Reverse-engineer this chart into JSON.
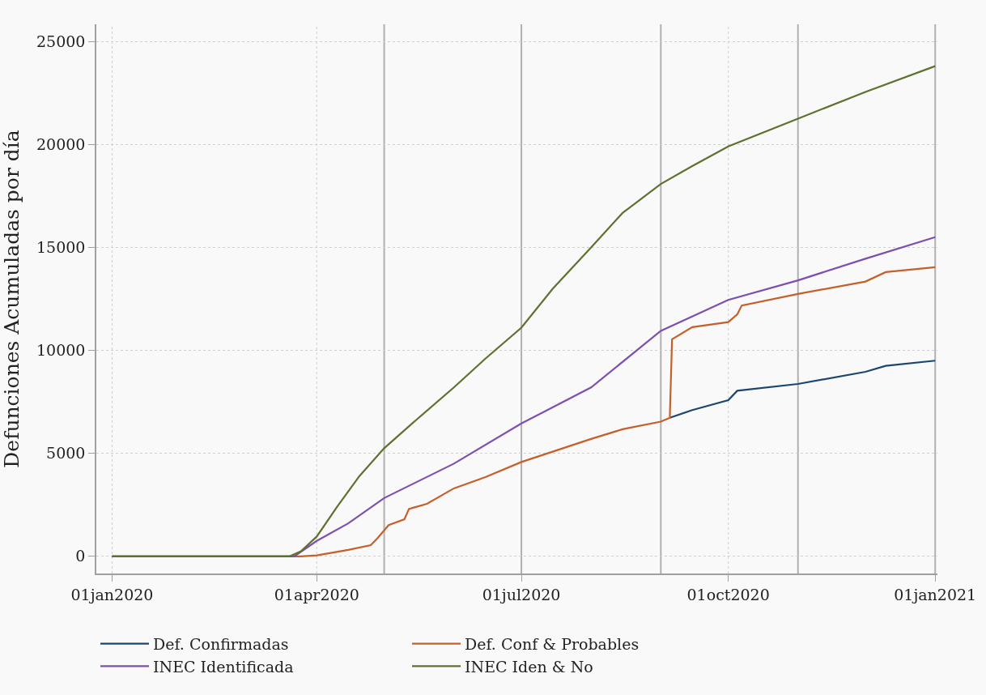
{
  "chart_data": {
    "type": "line",
    "ylabel": "Defunciones Acumuladas por día",
    "xlim": [
      "2019-12-25",
      "2021-01-02"
    ],
    "xticks": [
      {
        "value": "2020-01-01",
        "label": "01jan2020"
      },
      {
        "value": "2020-04-01",
        "label": "01apr2020"
      },
      {
        "value": "2020-07-01",
        "label": "01jul2020"
      },
      {
        "value": "2020-10-01",
        "label": "01oct2020"
      },
      {
        "value": "2021-01-01",
        "label": "01jan2021"
      }
    ],
    "ylim": [
      -833,
      25830
    ],
    "yticks": [
      0,
      5000,
      10000,
      15000,
      20000,
      25000
    ],
    "grid": true,
    "legend": "bottom",
    "marker": "none",
    "line_style": "solid",
    "ref_lines": [
      {
        "axis": "x",
        "value": "2020-05-01",
        "color": "#b0b0b0"
      },
      {
        "axis": "x",
        "value": "2020-07-01",
        "color": "#b0b0b0"
      },
      {
        "axis": "x",
        "value": "2020-09-01",
        "color": "#b0b0b0"
      },
      {
        "axis": "x",
        "value": "2020-11-01",
        "color": "#b0b0b0"
      },
      {
        "axis": "x",
        "value": "2021-01-01",
        "color": "#b0b0b0"
      }
    ],
    "series": [
      {
        "name": "Def. Confirmadas",
        "color": "#1a476f",
        "x": [
          "2020-09-05",
          "2020-09-15",
          "2020-10-01",
          "2020-10-05",
          "2020-11-01",
          "2020-12-01",
          "2020-12-10",
          "2021-01-01"
        ],
        "values": [
          6730,
          7100,
          7580,
          8040,
          8370,
          8960,
          9250,
          9500
        ]
      },
      {
        "name": "Def. Conf & Probables",
        "color": "#c4612b",
        "x": [
          "2020-01-01",
          "2020-03-25",
          "2020-04-01",
          "2020-04-15",
          "2020-04-25",
          "2020-04-28",
          "2020-05-03",
          "2020-05-10",
          "2020-05-12",
          "2020-05-20",
          "2020-06-01",
          "2020-06-15",
          "2020-07-01",
          "2020-08-01",
          "2020-08-15",
          "2020-09-01",
          "2020-09-05",
          "2020-09-06",
          "2020-09-15",
          "2020-10-01",
          "2020-10-05",
          "2020-10-07",
          "2020-11-01",
          "2020-12-01",
          "2020-12-10",
          "2021-01-01"
        ],
        "values": [
          0,
          0,
          50,
          310,
          540,
          880,
          1520,
          1800,
          2300,
          2550,
          3300,
          3850,
          4580,
          5700,
          6170,
          6540,
          6730,
          10540,
          11130,
          11370,
          11750,
          12180,
          12740,
          13340,
          13800,
          14040
        ]
      },
      {
        "name": "INEC Identificada",
        "color": "#7d4fae",
        "x": [
          "2020-01-01",
          "2020-03-22",
          "2020-04-01",
          "2020-04-15",
          "2020-05-01",
          "2020-06-01",
          "2020-07-01",
          "2020-08-01",
          "2020-09-01",
          "2020-10-01",
          "2020-11-01",
          "2020-12-01",
          "2021-01-01"
        ],
        "values": [
          0,
          0,
          750,
          1600,
          2830,
          4500,
          6450,
          8200,
          10950,
          12450,
          13400,
          14450,
          15500
        ]
      },
      {
        "name": "INEC Iden & No",
        "color": "#5e7130",
        "x": [
          "2020-01-01",
          "2020-03-20",
          "2020-03-25",
          "2020-04-01",
          "2020-04-10",
          "2020-04-20",
          "2020-05-01",
          "2020-05-15",
          "2020-06-01",
          "2020-06-15",
          "2020-07-01",
          "2020-07-15",
          "2020-08-01",
          "2020-08-15",
          "2020-09-01",
          "2020-09-15",
          "2020-10-01",
          "2020-11-01",
          "2020-12-01",
          "2021-01-01"
        ],
        "values": [
          0,
          0,
          250,
          960,
          2400,
          3900,
          5250,
          6600,
          8200,
          9600,
          11100,
          13000,
          15000,
          16670,
          18080,
          18950,
          19900,
          21250,
          22550,
          23800
        ]
      }
    ]
  }
}
